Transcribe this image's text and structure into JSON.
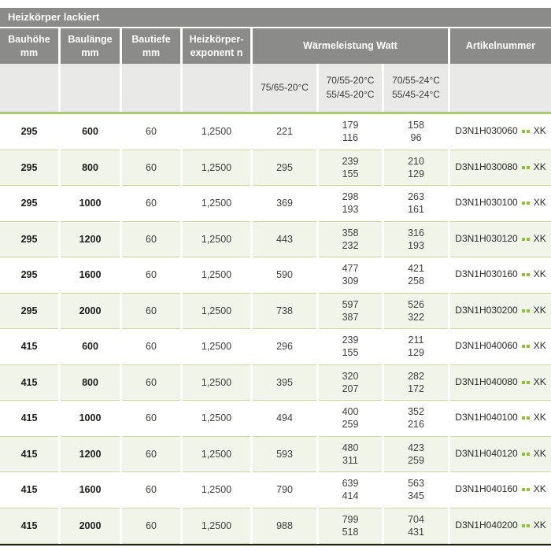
{
  "title": "Heizkörper lackiert",
  "colors": {
    "header_bg": "#8b8b89",
    "subheader_bg": "#e9e9e7",
    "row_alt_bg": "#f1f4e8",
    "row_border": "#cdd4a8",
    "accent_green_line": "#a9c87c",
    "accent_green_dot": "#8fbe3e",
    "table_bottom_border": "#1f1f1f"
  },
  "header": {
    "columns": [
      {
        "label": "Bauhöhe\nmm"
      },
      {
        "label": "Baulänge\nmm"
      },
      {
        "label": "Bautiefe\nmm"
      },
      {
        "label": "Heizkörper-\nexponent n"
      },
      {
        "label": "Wärmeleistung Watt"
      },
      {
        "label": "Artikelnummer"
      }
    ],
    "subcolumns": [
      "75/65-20°C",
      "70/55-20°C\n55/45-20°C",
      "70/55-24°C\n55/45-24°C"
    ]
  },
  "table": {
    "rows": [
      {
        "bauhoehe": "295",
        "baulaenge": "600",
        "bautiefe": "60",
        "exponent": "1,2500",
        "watt_75_65": "221",
        "watt_70_55_20": [
          "179",
          "116"
        ],
        "watt_70_55_24": [
          "158",
          "96"
        ],
        "artikelnummer": "D3N1H030060",
        "artikel_suffix": "XK"
      },
      {
        "bauhoehe": "295",
        "baulaenge": "800",
        "bautiefe": "60",
        "exponent": "1,2500",
        "watt_75_65": "295",
        "watt_70_55_20": [
          "239",
          "155"
        ],
        "watt_70_55_24": [
          "210",
          "129"
        ],
        "artikelnummer": "D3N1H030080",
        "artikel_suffix": "XK"
      },
      {
        "bauhoehe": "295",
        "baulaenge": "1000",
        "bautiefe": "60",
        "exponent": "1,2500",
        "watt_75_65": "369",
        "watt_70_55_20": [
          "298",
          "193"
        ],
        "watt_70_55_24": [
          "263",
          "161"
        ],
        "artikelnummer": "D3N1H030100",
        "artikel_suffix": "XK"
      },
      {
        "bauhoehe": "295",
        "baulaenge": "1200",
        "bautiefe": "60",
        "exponent": "1,2500",
        "watt_75_65": "443",
        "watt_70_55_20": [
          "358",
          "232"
        ],
        "watt_70_55_24": [
          "316",
          "193"
        ],
        "artikelnummer": "D3N1H030120",
        "artikel_suffix": "XK"
      },
      {
        "bauhoehe": "295",
        "baulaenge": "1600",
        "bautiefe": "60",
        "exponent": "1,2500",
        "watt_75_65": "590",
        "watt_70_55_20": [
          "477",
          "309"
        ],
        "watt_70_55_24": [
          "421",
          "258"
        ],
        "artikelnummer": "D3N1H030160",
        "artikel_suffix": "XK"
      },
      {
        "bauhoehe": "295",
        "baulaenge": "2000",
        "bautiefe": "60",
        "exponent": "1,2500",
        "watt_75_65": "738",
        "watt_70_55_20": [
          "597",
          "387"
        ],
        "watt_70_55_24": [
          "526",
          "322"
        ],
        "artikelnummer": "D3N1H030200",
        "artikel_suffix": "XK"
      },
      {
        "bauhoehe": "415",
        "baulaenge": "600",
        "bautiefe": "60",
        "exponent": "1,2500",
        "watt_75_65": "296",
        "watt_70_55_20": [
          "239",
          "155"
        ],
        "watt_70_55_24": [
          "211",
          "129"
        ],
        "artikelnummer": "D3N1H040060",
        "artikel_suffix": "XK"
      },
      {
        "bauhoehe": "415",
        "baulaenge": "800",
        "bautiefe": "60",
        "exponent": "1,2500",
        "watt_75_65": "395",
        "watt_70_55_20": [
          "320",
          "207"
        ],
        "watt_70_55_24": [
          "282",
          "172"
        ],
        "artikelnummer": "D3N1H040080",
        "artikel_suffix": "XK"
      },
      {
        "bauhoehe": "415",
        "baulaenge": "1000",
        "bautiefe": "60",
        "exponent": "1,2500",
        "watt_75_65": "494",
        "watt_70_55_20": [
          "400",
          "259"
        ],
        "watt_70_55_24": [
          "352",
          "216"
        ],
        "artikelnummer": "D3N1H040100",
        "artikel_suffix": "XK"
      },
      {
        "bauhoehe": "415",
        "baulaenge": "1200",
        "bautiefe": "60",
        "exponent": "1,2500",
        "watt_75_65": "593",
        "watt_70_55_20": [
          "480",
          "311"
        ],
        "watt_70_55_24": [
          "423",
          "259"
        ],
        "artikelnummer": "D3N1H040120",
        "artikel_suffix": "XK"
      },
      {
        "bauhoehe": "415",
        "baulaenge": "1600",
        "bautiefe": "60",
        "exponent": "1,2500",
        "watt_75_65": "790",
        "watt_70_55_20": [
          "639",
          "414"
        ],
        "watt_70_55_24": [
          "563",
          "345"
        ],
        "artikelnummer": "D3N1H040160",
        "artikel_suffix": "XK"
      },
      {
        "bauhoehe": "415",
        "baulaenge": "2000",
        "bautiefe": "60",
        "exponent": "1,2500",
        "watt_75_65": "988",
        "watt_70_55_20": [
          "799",
          "518"
        ],
        "watt_70_55_24": [
          "704",
          "431"
        ],
        "artikelnummer": "D3N1H040200",
        "artikel_suffix": "XK"
      }
    ]
  }
}
